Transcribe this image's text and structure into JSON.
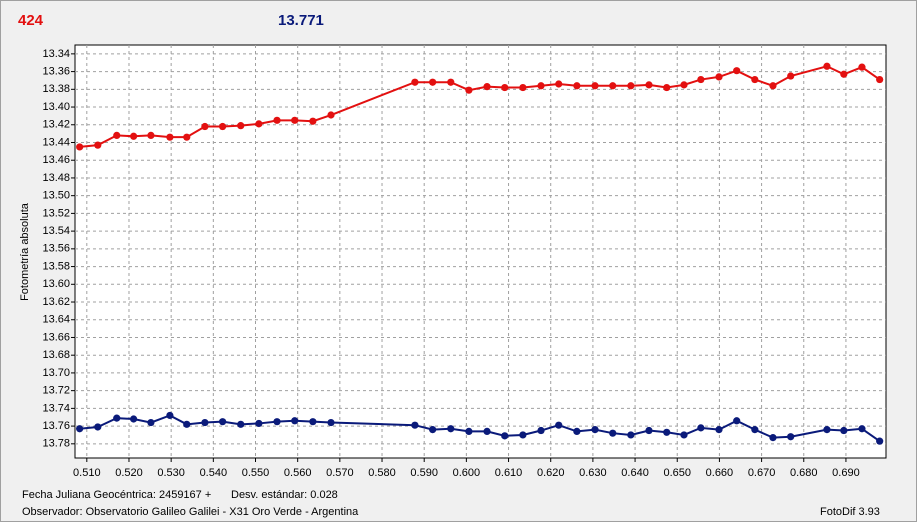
{
  "header": {
    "left_label": "424",
    "right_label": "13.771"
  },
  "footer": {
    "date_label": "Fecha Juliana Geocéntrica: 2459167 +",
    "std_label": "Desv. estándar: 0.028",
    "observer": "Observador: Observatorio Galileo Galilei - X31 Oro Verde - Argentina",
    "version": "FotoDif 3.93"
  },
  "chart_data": {
    "type": "line",
    "y_label": "Fotometría absoluta",
    "x": [
      0.5083,
      0.5126,
      0.5171,
      0.5211,
      0.5252,
      0.5297,
      0.5337,
      0.538,
      0.5422,
      0.5465,
      0.5508,
      0.5551,
      0.5593,
      0.5636,
      0.5679,
      0.5878,
      0.592,
      0.5963,
      0.6006,
      0.6049,
      0.6091,
      0.6134,
      0.6177,
      0.6219,
      0.6262,
      0.6305,
      0.6347,
      0.639,
      0.6433,
      0.6475,
      0.6516,
      0.6556,
      0.6599,
      0.6641,
      0.6684,
      0.6727,
      0.6769,
      0.6855,
      0.6895,
      0.6938,
      0.698
    ],
    "series": [
      {
        "color": "#e31010",
        "values": [
          13.445,
          13.443,
          13.432,
          13.433,
          13.432,
          13.434,
          13.434,
          13.422,
          13.422,
          13.421,
          13.419,
          13.415,
          13.415,
          13.416,
          13.409,
          13.372,
          13.372,
          13.372,
          13.381,
          13.377,
          13.378,
          13.378,
          13.376,
          13.374,
          13.376,
          13.376,
          13.376,
          13.376,
          13.375,
          13.378,
          13.375,
          13.369,
          13.366,
          13.359,
          13.369,
          13.376,
          13.365,
          13.354,
          13.363,
          13.355,
          13.369
        ]
      },
      {
        "color": "#0a1a7a",
        "values": [
          13.763,
          13.761,
          13.751,
          13.752,
          13.756,
          13.748,
          13.758,
          13.756,
          13.755,
          13.758,
          13.757,
          13.755,
          13.754,
          13.755,
          13.756,
          13.759,
          13.764,
          13.763,
          13.766,
          13.766,
          13.771,
          13.77,
          13.765,
          13.759,
          13.766,
          13.764,
          13.768,
          13.77,
          13.765,
          13.767,
          13.77,
          13.762,
          13.764,
          13.754,
          13.764,
          13.773,
          13.772,
          13.764,
          13.765,
          13.763,
          13.777
        ]
      }
    ],
    "xlim": [
      0.5072,
      0.6995
    ],
    "ylim": [
      13.796,
      13.33
    ],
    "xticks": [
      {
        "value": 0.51,
        "label": "0.510"
      },
      {
        "value": 0.52,
        "label": "0.520"
      },
      {
        "value": 0.53,
        "label": "0.530"
      },
      {
        "value": 0.54,
        "label": "0.540"
      },
      {
        "value": 0.55,
        "label": "0.550"
      },
      {
        "value": 0.56,
        "label": "0.560"
      },
      {
        "value": 0.57,
        "label": "0.570"
      },
      {
        "value": 0.58,
        "label": "0.580"
      },
      {
        "value": 0.59,
        "label": "0.590"
      },
      {
        "value": 0.6,
        "label": "0.600"
      },
      {
        "value": 0.61,
        "label": "0.610"
      },
      {
        "value": 0.62,
        "label": "0.620"
      },
      {
        "value": 0.63,
        "label": "0.630"
      },
      {
        "value": 0.64,
        "label": "0.640"
      },
      {
        "value": 0.65,
        "label": "0.650"
      },
      {
        "value": 0.66,
        "label": "0.660"
      },
      {
        "value": 0.67,
        "label": "0.670"
      },
      {
        "value": 0.68,
        "label": "0.680"
      },
      {
        "value": 0.69,
        "label": "0.690"
      }
    ],
    "yticks": [
      13.34,
      13.36,
      13.38,
      {
        "value": 13.4,
        "label": "13.40"
      },
      13.42,
      13.44,
      13.46,
      13.48,
      {
        "value": 13.5,
        "label": "13.50"
      },
      13.52,
      13.54,
      13.56,
      13.58,
      {
        "value": 13.6,
        "label": "13.60"
      },
      13.62,
      13.64,
      13.66,
      13.68,
      {
        "value": 13.7,
        "label": "13.70"
      },
      13.72,
      13.74,
      13.76,
      13.78
    ],
    "grid": true
  }
}
